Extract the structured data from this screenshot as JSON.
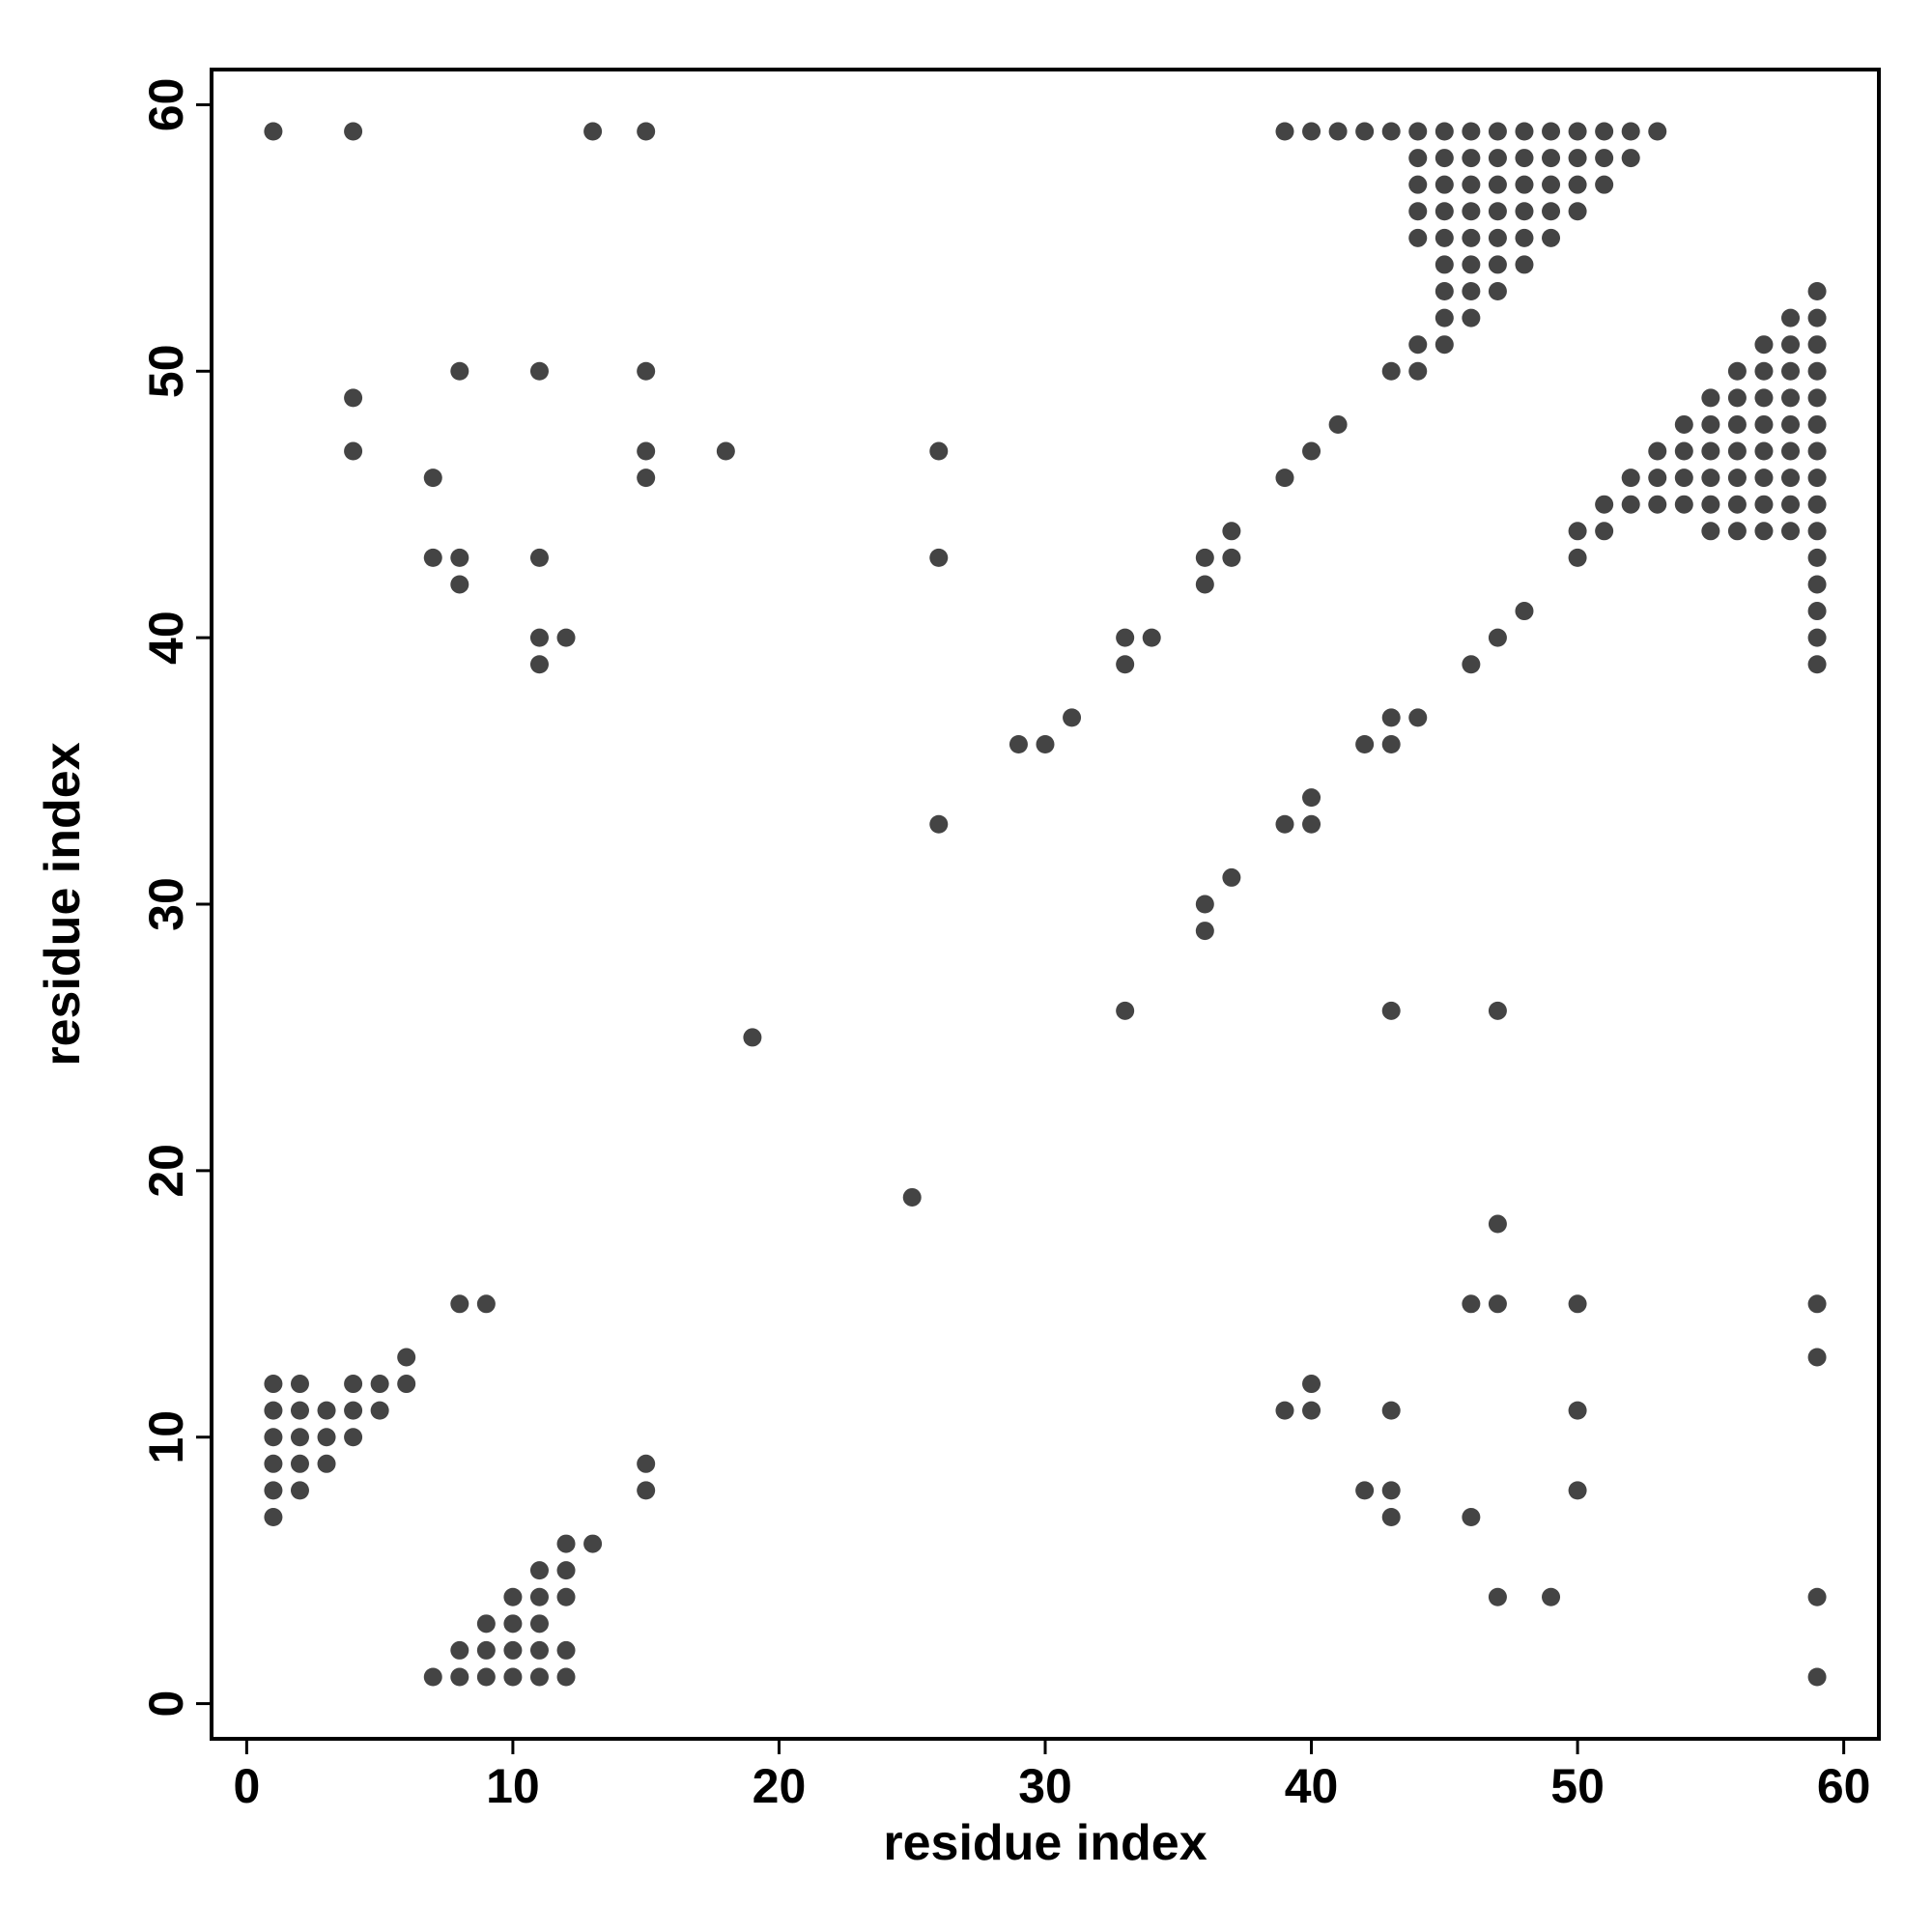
{
  "chart_data": {
    "type": "scatter",
    "xlabel": "residue index",
    "ylabel": "residue index",
    "color": "#444444",
    "xlim": [
      -1.32,
      61.32
    ],
    "ylim": [
      -1.32,
      61.32
    ],
    "xticks": [
      0,
      10,
      20,
      30,
      40,
      50,
      60
    ],
    "yticks": [
      0,
      10,
      20,
      30,
      40,
      50,
      60
    ],
    "x": [
      1,
      4,
      13,
      15,
      39,
      40,
      41,
      42,
      43,
      44,
      45,
      46,
      47,
      48,
      49,
      50,
      51,
      52,
      53,
      44,
      45,
      46,
      47,
      48,
      49,
      50,
      51,
      52,
      44,
      45,
      46,
      47,
      48,
      49,
      50,
      51,
      44,
      45,
      46,
      47,
      48,
      49,
      50,
      44,
      45,
      46,
      47,
      48,
      49,
      45,
      46,
      47,
      48,
      45,
      46,
      47,
      59,
      45,
      46,
      58,
      59,
      44,
      45,
      57,
      58,
      59,
      8,
      11,
      15,
      43,
      44,
      56,
      57,
      58,
      59,
      4,
      55,
      56,
      57,
      58,
      59,
      41,
      54,
      55,
      56,
      57,
      58,
      59,
      4,
      15,
      18,
      26,
      40,
      53,
      54,
      55,
      56,
      57,
      58,
      59,
      7,
      15,
      39,
      52,
      53,
      54,
      55,
      56,
      57,
      58,
      59,
      51,
      52,
      53,
      54,
      55,
      56,
      57,
      58,
      59,
      37,
      50,
      51,
      55,
      56,
      57,
      58,
      59,
      7,
      8,
      11,
      26,
      36,
      37,
      50,
      59,
      8,
      36,
      59,
      48,
      59,
      11,
      12,
      33,
      34,
      47,
      59,
      11,
      33,
      46,
      59,
      31,
      43,
      44,
      29,
      30,
      42,
      43,
      40,
      26,
      39,
      40,
      37,
      36,
      36,
      33,
      43,
      47,
      19,
      25,
      47,
      8,
      9,
      46,
      47,
      50,
      59,
      6,
      59,
      1,
      2,
      4,
      5,
      6,
      40,
      1,
      2,
      3,
      4,
      5,
      39,
      40,
      43,
      50,
      1,
      2,
      3,
      4,
      1,
      2,
      3,
      15,
      1,
      2,
      15,
      42,
      43,
      50,
      1,
      43,
      46,
      12,
      13,
      11,
      12,
      10,
      11,
      12,
      47,
      49,
      59,
      9,
      10,
      11,
      8,
      9,
      10,
      11,
      12,
      7,
      8,
      9,
      10,
      11,
      12,
      59
    ],
    "y": [
      59,
      59,
      59,
      59,
      59,
      59,
      59,
      59,
      59,
      59,
      59,
      59,
      59,
      59,
      59,
      59,
      59,
      59,
      59,
      58,
      58,
      58,
      58,
      58,
      58,
      58,
      58,
      58,
      57,
      57,
      57,
      57,
      57,
      57,
      57,
      57,
      56,
      56,
      56,
      56,
      56,
      56,
      56,
      55,
      55,
      55,
      55,
      55,
      55,
      54,
      54,
      54,
      54,
      53,
      53,
      53,
      53,
      52,
      52,
      52,
      52,
      51,
      51,
      51,
      51,
      51,
      50,
      50,
      50,
      50,
      50,
      50,
      50,
      50,
      50,
      49,
      49,
      49,
      49,
      49,
      49,
      48,
      48,
      48,
      48,
      48,
      48,
      48,
      47,
      47,
      47,
      47,
      47,
      47,
      47,
      47,
      47,
      47,
      47,
      47,
      46,
      46,
      46,
      46,
      46,
      46,
      46,
      46,
      46,
      46,
      46,
      45,
      45,
      45,
      45,
      45,
      45,
      45,
      45,
      45,
      44,
      44,
      44,
      44,
      44,
      44,
      44,
      44,
      43,
      43,
      43,
      43,
      43,
      43,
      43,
      43,
      42,
      42,
      42,
      41,
      41,
      40,
      40,
      40,
      40,
      40,
      40,
      39,
      39,
      39,
      39,
      37,
      37,
      37,
      36,
      36,
      36,
      36,
      34,
      33,
      33,
      33,
      31,
      30,
      29,
      26,
      26,
      26,
      25,
      19,
      18,
      15,
      15,
      15,
      15,
      15,
      15,
      13,
      13,
      12,
      12,
      12,
      12,
      12,
      12,
      11,
      11,
      11,
      11,
      11,
      11,
      11,
      11,
      11,
      10,
      10,
      10,
      10,
      9,
      9,
      9,
      9,
      8,
      8,
      8,
      8,
      8,
      8,
      7,
      7,
      7,
      6,
      6,
      5,
      5,
      4,
      4,
      4,
      4,
      4,
      4,
      3,
      3,
      3,
      2,
      2,
      2,
      2,
      2,
      1,
      1,
      1,
      1,
      1,
      1,
      1
    ]
  }
}
